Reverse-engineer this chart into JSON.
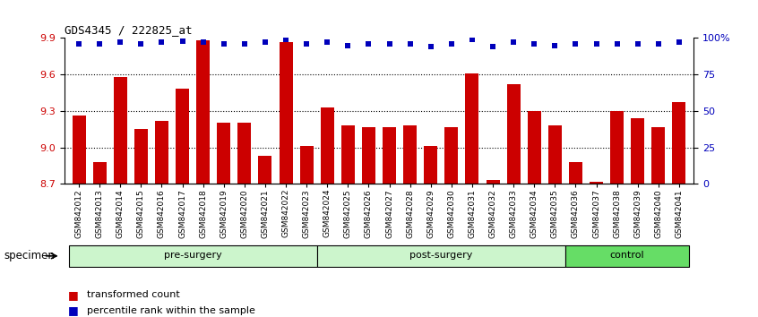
{
  "title": "GDS4345 / 222825_at",
  "categories": [
    "GSM842012",
    "GSM842013",
    "GSM842014",
    "GSM842015",
    "GSM842016",
    "GSM842017",
    "GSM842018",
    "GSM842019",
    "GSM842020",
    "GSM842021",
    "GSM842022",
    "GSM842023",
    "GSM842024",
    "GSM842025",
    "GSM842026",
    "GSM842027",
    "GSM842028",
    "GSM842029",
    "GSM842030",
    "GSM842031",
    "GSM842032",
    "GSM842033",
    "GSM842034",
    "GSM842035",
    "GSM842036",
    "GSM842037",
    "GSM842038",
    "GSM842039",
    "GSM842040",
    "GSM842041"
  ],
  "bar_values": [
    9.26,
    8.88,
    9.58,
    9.15,
    9.22,
    9.48,
    9.88,
    9.2,
    9.2,
    8.93,
    9.87,
    9.01,
    9.33,
    9.18,
    9.17,
    9.17,
    9.18,
    9.01,
    9.17,
    9.61,
    8.73,
    9.52,
    9.3,
    9.18,
    8.88,
    8.72,
    9.3,
    9.24,
    9.17,
    9.37
  ],
  "percentile_values": [
    96,
    96,
    97,
    96,
    97,
    98,
    97,
    96,
    96,
    97,
    99,
    96,
    97,
    95,
    96,
    96,
    96,
    94,
    96,
    99,
    94,
    97,
    96,
    95,
    96,
    96,
    96,
    96,
    96,
    97
  ],
  "group_labels": [
    "pre-surgery",
    "post-surgery",
    "control"
  ],
  "group_counts": [
    12,
    12,
    6
  ],
  "bar_color": "#CC0000",
  "dot_color": "#0000BB",
  "ylim": [
    8.7,
    9.9
  ],
  "y_ticks": [
    8.7,
    9.0,
    9.3,
    9.6,
    9.9
  ],
  "right_y_ticks_pct": [
    0,
    25,
    50,
    75,
    100
  ],
  "right_y_labels": [
    "0",
    "25",
    "50",
    "75",
    "100%"
  ]
}
